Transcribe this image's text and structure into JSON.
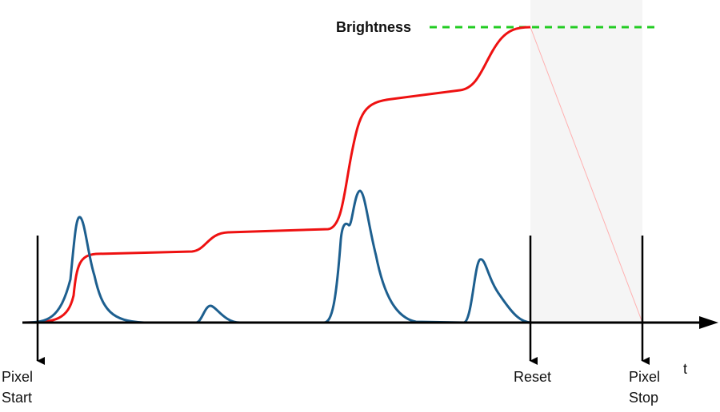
{
  "brightness_label": "Brightness",
  "markers": [
    {
      "lines": [
        "Pixel",
        "Start"
      ]
    },
    {
      "lines": [
        "Reset"
      ]
    },
    {
      "lines": [
        "Pixel",
        "Stop"
      ]
    }
  ],
  "axis_label": "t"
}
